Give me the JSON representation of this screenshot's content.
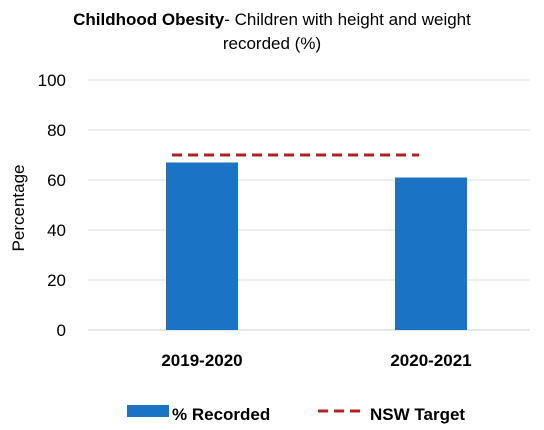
{
  "chart_data": {
    "type": "bar",
    "title_bold": "Childhood Obesity",
    "title_rest": "- Children with height and weight recorded (%)",
    "ylabel": "Percentage",
    "xlabel": "",
    "ylim": [
      0,
      100
    ],
    "yticks": [
      0,
      20,
      40,
      60,
      80,
      100
    ],
    "categories": [
      "2019-2020",
      "2020-2021"
    ],
    "series": [
      {
        "name": "% Recorded",
        "type": "bar",
        "color": "#1a73c4",
        "values": [
          67,
          61
        ]
      },
      {
        "name": "NSW Target",
        "type": "line",
        "style": "dashed",
        "color": "#b22222",
        "values": [
          70,
          70
        ]
      }
    ],
    "grid": true,
    "legend": "bottom"
  }
}
